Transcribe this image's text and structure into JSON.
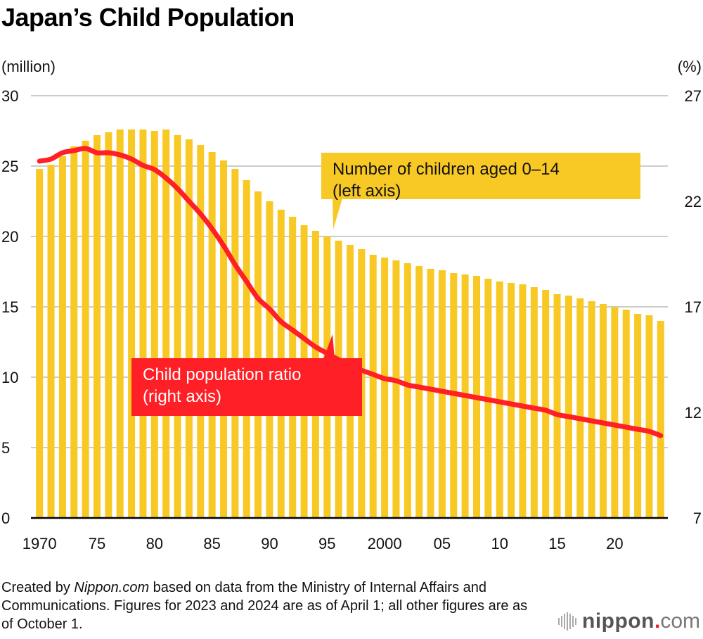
{
  "title": "Japan’s Child Population",
  "units": {
    "left": "(million)",
    "right": "(%)"
  },
  "callouts": {
    "bars": {
      "line1": "Number of children aged 0–14",
      "line2": "(left axis)"
    },
    "line": {
      "line1": "Child population ratio",
      "line2": "(right axis)"
    }
  },
  "footnote": {
    "prefix": "Created by ",
    "source_italic": "Nippon.com",
    "rest": " based on data from the Ministry of Internal Affairs and Communications. Figures for 2023 and 2024 are as of April 1; all other figures are as of October 1."
  },
  "logo": {
    "name": "nippon",
    "dot": ".",
    "suffix": "com"
  },
  "colors": {
    "bar": "#f8c924",
    "line": "#ff1f26",
    "grid": "#cccccc",
    "axis": "#000000"
  },
  "chart_data": {
    "type": "bar+line",
    "title": "Japan’s Child Population",
    "xlabel": "",
    "ylabel_left": "(million)",
    "ylabel_right": "(%)",
    "ylim_left": [
      0,
      30
    ],
    "ylim_right": [
      7,
      27
    ],
    "yticks_left": [
      0,
      5,
      10,
      15,
      20,
      25,
      30
    ],
    "yticks_right": [
      7,
      12,
      17,
      22,
      27
    ],
    "xtick_labels": [
      {
        "year": 1970,
        "label": "1970"
      },
      {
        "year": 1975,
        "label": "75"
      },
      {
        "year": 1980,
        "label": "80"
      },
      {
        "year": 1985,
        "label": "85"
      },
      {
        "year": 1990,
        "label": "90"
      },
      {
        "year": 1995,
        "label": "95"
      },
      {
        "year": 2000,
        "label": "2000"
      },
      {
        "year": 2005,
        "label": "05"
      },
      {
        "year": 2010,
        "label": "10"
      },
      {
        "year": 2015,
        "label": "15"
      },
      {
        "year": 2020,
        "label": "20"
      }
    ],
    "grid": true,
    "x": [
      1970,
      1971,
      1972,
      1973,
      1974,
      1975,
      1976,
      1977,
      1978,
      1979,
      1980,
      1981,
      1982,
      1983,
      1984,
      1985,
      1986,
      1987,
      1988,
      1989,
      1990,
      1991,
      1992,
      1993,
      1994,
      1995,
      1996,
      1997,
      1998,
      1999,
      2000,
      2001,
      2002,
      2003,
      2004,
      2005,
      2006,
      2007,
      2008,
      2009,
      2010,
      2011,
      2012,
      2013,
      2014,
      2015,
      2016,
      2017,
      2018,
      2019,
      2020,
      2021,
      2022,
      2023,
      2024
    ],
    "series": [
      {
        "name": "Number of children aged 0–14 (left axis)",
        "type": "bar",
        "axis": "left",
        "values": [
          24.8,
          25.1,
          25.7,
          26.4,
          26.8,
          27.2,
          27.4,
          27.6,
          27.6,
          27.6,
          27.5,
          27.6,
          27.2,
          26.9,
          26.5,
          26.0,
          25.4,
          24.8,
          24.0,
          23.2,
          22.5,
          21.9,
          21.4,
          20.8,
          20.4,
          20.0,
          19.7,
          19.4,
          19.1,
          18.7,
          18.5,
          18.3,
          18.1,
          17.9,
          17.7,
          17.6,
          17.4,
          17.3,
          17.2,
          17.0,
          16.8,
          16.7,
          16.6,
          16.4,
          16.2,
          15.9,
          15.8,
          15.6,
          15.4,
          15.2,
          15.0,
          14.8,
          14.5,
          14.4,
          14.0
        ]
      },
      {
        "name": "Child population ratio (right axis)",
        "type": "line",
        "axis": "right",
        "values": [
          23.9,
          24.0,
          24.3,
          24.4,
          24.5,
          24.3,
          24.3,
          24.2,
          24.0,
          23.7,
          23.5,
          23.1,
          22.6,
          22.0,
          21.4,
          20.7,
          19.9,
          19.0,
          18.2,
          17.4,
          16.9,
          16.3,
          15.9,
          15.5,
          15.1,
          14.8,
          14.5,
          14.3,
          14.0,
          13.8,
          13.6,
          13.5,
          13.3,
          13.2,
          13.1,
          13.0,
          12.9,
          12.8,
          12.7,
          12.6,
          12.5,
          12.4,
          12.3,
          12.2,
          12.1,
          11.9,
          11.8,
          11.7,
          11.6,
          11.5,
          11.4,
          11.3,
          11.2,
          11.1,
          10.9
        ]
      }
    ]
  }
}
